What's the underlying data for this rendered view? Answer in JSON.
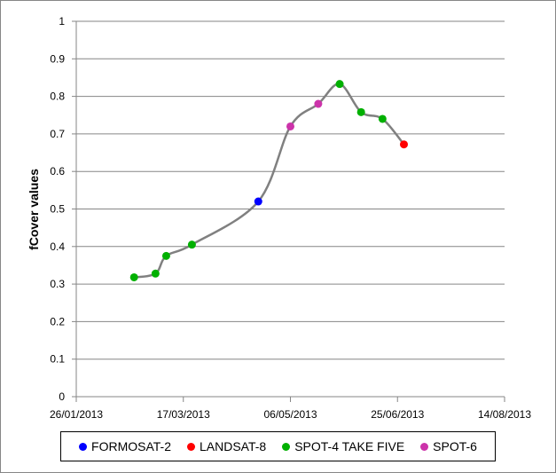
{
  "chart_data": {
    "type": "scatter",
    "title": "",
    "xlabel": "",
    "ylabel": "fCover  values",
    "xlim": [
      "2013-01-26",
      "2013-08-14"
    ],
    "ylim": [
      0,
      1
    ],
    "x_ticks": [
      "26/01/2013",
      "17/03/2013",
      "06/05/2013",
      "25/06/2013",
      "14/08/2013"
    ],
    "y_ticks": [
      "0",
      "0.1",
      "0.2",
      "0.3",
      "0.4",
      "0.5",
      "0.6",
      "0.7",
      "0.8",
      "0.9",
      "1"
    ],
    "grid": "horizontal",
    "legend_position": "bottom",
    "line": {
      "color": "#808080",
      "smooth": true,
      "x": [
        "2013-02-22",
        "2013-03-04",
        "2013-03-09",
        "2013-03-21",
        "2013-04-21",
        "2013-05-06",
        "2013-05-19",
        "2013-05-29",
        "2013-06-08",
        "2013-06-18",
        "2013-06-28"
      ],
      "y": [
        0.318,
        0.328,
        0.375,
        0.405,
        0.52,
        0.72,
        0.78,
        0.833,
        0.758,
        0.74,
        0.672
      ]
    },
    "series": [
      {
        "name": "FORMOSAT-2",
        "color": "#0000ff",
        "x": [
          "2013-04-21"
        ],
        "y": [
          0.52
        ]
      },
      {
        "name": "LANDSAT-8",
        "color": "#ff0000",
        "x": [
          "2013-06-28"
        ],
        "y": [
          0.672
        ]
      },
      {
        "name": "SPOT-4 TAKE FIVE",
        "color": "#00b000",
        "x": [
          "2013-02-22",
          "2013-03-04",
          "2013-03-09",
          "2013-03-21",
          "2013-05-29",
          "2013-06-08",
          "2013-06-18"
        ],
        "y": [
          0.318,
          0.328,
          0.375,
          0.405,
          0.833,
          0.758,
          0.74
        ]
      },
      {
        "name": "SPOT-6",
        "color": "#cc33aa",
        "x": [
          "2013-05-06",
          "2013-05-19"
        ],
        "y": [
          0.72,
          0.78
        ]
      }
    ]
  }
}
